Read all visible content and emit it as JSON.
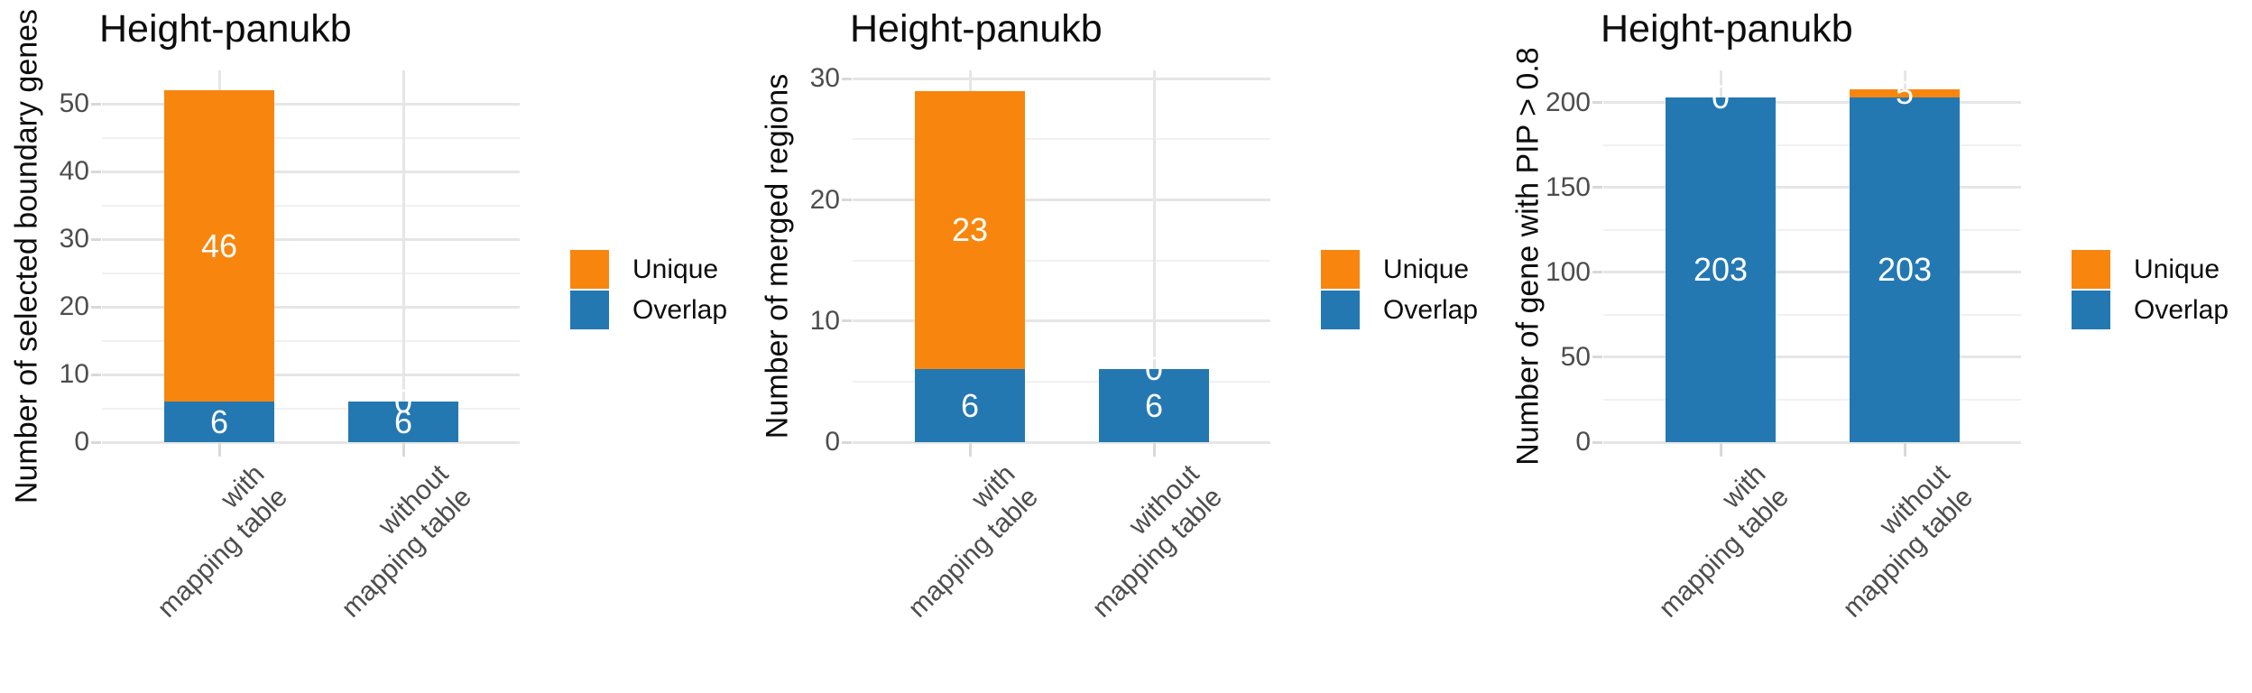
{
  "colors": {
    "unique": "#F8860E",
    "overlap": "#2478B2",
    "title_text": "#0d0d0d",
    "axis_text": "#4d4d4d",
    "bar_label_text": "#ffffff",
    "grid_major": "#e6e6e6",
    "grid_minor": "#f1f1f1",
    "background": "#ffffff"
  },
  "legend": {
    "position": "right",
    "items": [
      {
        "label": "Unique",
        "color": "#F8860E"
      },
      {
        "label": "Overlap",
        "color": "#2478B2"
      }
    ]
  },
  "chart_data": [
    {
      "type": "bar",
      "stacked": true,
      "title": "Height-panukb",
      "xlabel": "",
      "ylabel": "Number of selected boundary genes",
      "categories": [
        "with\nmapping table",
        "without\nmapping table"
      ],
      "series": [
        {
          "name": "Overlap",
          "color_key": "overlap",
          "values": [
            6,
            6
          ]
        },
        {
          "name": "Unique",
          "color_key": "unique",
          "values": [
            46,
            0
          ]
        }
      ],
      "yticks": [
        0,
        10,
        20,
        30,
        40,
        50
      ],
      "yminor": [
        5,
        15,
        25,
        35,
        45
      ],
      "ylim": [
        0,
        55
      ],
      "grid": true,
      "legend_position": "right"
    },
    {
      "type": "bar",
      "stacked": true,
      "title": "Height-panukb",
      "xlabel": "",
      "ylabel": "Number of merged regions",
      "categories": [
        "with\nmapping table",
        "without\nmapping table"
      ],
      "series": [
        {
          "name": "Overlap",
          "color_key": "overlap",
          "values": [
            6,
            6
          ]
        },
        {
          "name": "Unique",
          "color_key": "unique",
          "values": [
            23,
            0
          ]
        }
      ],
      "yticks": [
        0,
        10,
        20,
        30
      ],
      "yminor": [
        5,
        15,
        25
      ],
      "ylim": [
        0,
        30.7
      ],
      "grid": true,
      "legend_position": "right"
    },
    {
      "type": "bar",
      "stacked": true,
      "title": "Height-panukb",
      "xlabel": "",
      "ylabel": "Number of gene with PIP > 0.8",
      "categories": [
        "with\nmapping table",
        "without\nmapping table"
      ],
      "series": [
        {
          "name": "Overlap",
          "color_key": "overlap",
          "values": [
            203,
            203
          ]
        },
        {
          "name": "Unique",
          "color_key": "unique",
          "values": [
            0,
            5
          ]
        }
      ],
      "yticks": [
        0,
        50,
        100,
        150,
        200
      ],
      "yminor": [
        25,
        75,
        125,
        175
      ],
      "ylim": [
        0,
        219
      ],
      "grid": true,
      "legend_position": "right"
    }
  ]
}
